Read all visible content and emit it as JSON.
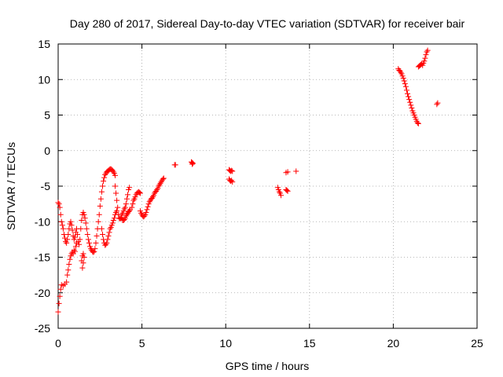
{
  "colors": {
    "series": "#ff0000",
    "grid": "#a0a0a0",
    "axis": "#000000"
  },
  "chart_data": {
    "type": "scatter",
    "title": "Day 280 of 2017, Sidereal Day-to-day VTEC variation (SDTVAR) for receiver bair",
    "xlabel": "GPS time / hours",
    "ylabel": "SDTVAR / TECUs",
    "xlim": [
      0,
      25
    ],
    "ylim": [
      -25,
      15
    ],
    "xticks": [
      0,
      5,
      10,
      15,
      20,
      25
    ],
    "yticks": [
      -25,
      -20,
      -15,
      -10,
      -5,
      0,
      5,
      10,
      15
    ],
    "xtick_labels": [
      "0",
      "5",
      "10",
      "15",
      "20",
      "25"
    ],
    "ytick_labels": [
      "-25",
      "-20",
      "-15",
      "-10",
      "-5",
      "0",
      "5",
      "10",
      "15"
    ],
    "grid": true,
    "marker": "+",
    "series": [
      {
        "name": "SDTVAR",
        "points": [
          [
            0.0,
            -7.3
          ],
          [
            0.05,
            -7.5
          ],
          [
            0.1,
            -8.0
          ],
          [
            0.15,
            -9.0
          ],
          [
            0.2,
            -10.0
          ],
          [
            0.25,
            -10.5
          ],
          [
            0.3,
            -11.0
          ],
          [
            0.35,
            -11.8
          ],
          [
            0.4,
            -12.3
          ],
          [
            0.45,
            -12.8
          ],
          [
            0.0,
            -22.7
          ],
          [
            0.05,
            -21.5
          ],
          [
            0.1,
            -20.5
          ],
          [
            0.15,
            -19.5
          ],
          [
            0.2,
            -18.9
          ],
          [
            0.3,
            -19.0
          ],
          [
            0.4,
            -18.8
          ],
          [
            0.5,
            -18.5
          ],
          [
            0.55,
            -17.5
          ],
          [
            0.6,
            -16.8
          ],
          [
            0.65,
            -16.0
          ],
          [
            0.7,
            -15.3
          ],
          [
            0.75,
            -14.8
          ],
          [
            0.8,
            -14.5
          ],
          [
            0.85,
            -14.3
          ],
          [
            0.9,
            -14.5
          ],
          [
            0.95,
            -14.0
          ],
          [
            1.0,
            -14.2
          ],
          [
            1.05,
            -13.5
          ],
          [
            1.1,
            -13.0
          ],
          [
            0.5,
            -13.0
          ],
          [
            0.55,
            -12.5
          ],
          [
            0.6,
            -11.8
          ],
          [
            0.65,
            -11.0
          ],
          [
            0.7,
            -10.3
          ],
          [
            0.75,
            -10.0
          ],
          [
            0.8,
            -10.5
          ],
          [
            0.85,
            -11.2
          ],
          [
            0.9,
            -12.0
          ],
          [
            0.95,
            -12.5
          ],
          [
            1.0,
            -12.2
          ],
          [
            1.05,
            -11.5
          ],
          [
            1.1,
            -11.0
          ],
          [
            1.15,
            -11.8
          ],
          [
            1.2,
            -12.8
          ],
          [
            1.25,
            -13.2
          ],
          [
            1.3,
            -12.5
          ],
          [
            1.35,
            -11.0
          ],
          [
            1.4,
            -9.8
          ],
          [
            1.45,
            -9.0
          ],
          [
            1.5,
            -8.7
          ],
          [
            1.55,
            -9.0
          ],
          [
            1.6,
            -9.5
          ],
          [
            1.65,
            -10.2
          ],
          [
            1.7,
            -11.0
          ],
          [
            1.75,
            -11.8
          ],
          [
            1.8,
            -12.5
          ],
          [
            1.85,
            -13.0
          ],
          [
            1.9,
            -13.5
          ],
          [
            1.95,
            -13.8
          ],
          [
            2.0,
            -14.0
          ],
          [
            2.05,
            -14.2
          ],
          [
            2.1,
            -14.3
          ],
          [
            2.15,
            -14.2
          ],
          [
            2.2,
            -13.8
          ],
          [
            2.25,
            -13.0
          ],
          [
            2.3,
            -12.0
          ],
          [
            2.35,
            -11.0
          ],
          [
            2.4,
            -10.0
          ],
          [
            2.45,
            -9.0
          ],
          [
            2.5,
            -7.8
          ],
          [
            2.55,
            -6.8
          ],
          [
            2.6,
            -5.8
          ],
          [
            2.65,
            -5.0
          ],
          [
            2.7,
            -4.3
          ],
          [
            2.75,
            -3.8
          ],
          [
            2.8,
            -3.4
          ],
          [
            2.85,
            -3.2
          ],
          [
            2.9,
            -3.0
          ],
          [
            2.95,
            -2.9
          ],
          [
            3.0,
            -2.8
          ],
          [
            3.05,
            -2.7
          ],
          [
            3.1,
            -2.6
          ],
          [
            3.15,
            -2.6
          ],
          [
            3.2,
            -2.7
          ],
          [
            3.25,
            -2.8
          ],
          [
            3.3,
            -3.0
          ],
          [
            3.35,
            -3.2
          ],
          [
            3.4,
            -3.5
          ],
          [
            1.4,
            -15.5
          ],
          [
            1.45,
            -16.5
          ],
          [
            1.5,
            -15.8
          ],
          [
            1.55,
            -15.0
          ],
          [
            1.45,
            -14.8
          ],
          [
            1.5,
            -14.5
          ],
          [
            2.6,
            -11.0
          ],
          [
            2.65,
            -11.8
          ],
          [
            2.7,
            -12.5
          ],
          [
            2.75,
            -13.0
          ],
          [
            2.8,
            -13.3
          ],
          [
            2.85,
            -13.2
          ],
          [
            2.9,
            -13.0
          ],
          [
            2.95,
            -12.5
          ],
          [
            3.0,
            -12.0
          ],
          [
            3.05,
            -11.5
          ],
          [
            3.1,
            -11.0
          ],
          [
            3.15,
            -10.8
          ],
          [
            3.2,
            -10.5
          ],
          [
            3.25,
            -10.2
          ],
          [
            3.3,
            -9.8
          ],
          [
            3.35,
            -9.5
          ],
          [
            3.4,
            -9.0
          ],
          [
            3.45,
            -8.7
          ],
          [
            3.5,
            -8.5
          ],
          [
            3.4,
            -5.0
          ],
          [
            3.45,
            -6.0
          ],
          [
            3.5,
            -7.0
          ],
          [
            3.55,
            -8.0
          ],
          [
            3.6,
            -9.0
          ],
          [
            3.65,
            -9.5
          ],
          [
            3.7,
            -9.6
          ],
          [
            3.75,
            -9.4
          ],
          [
            3.8,
            -9.0
          ],
          [
            3.85,
            -8.8
          ],
          [
            3.9,
            -8.5
          ],
          [
            3.95,
            -8.2
          ],
          [
            4.0,
            -8.0
          ],
          [
            4.05,
            -7.5
          ],
          [
            4.1,
            -6.8
          ],
          [
            4.15,
            -6.2
          ],
          [
            4.2,
            -5.5
          ],
          [
            4.25,
            -5.2
          ],
          [
            3.8,
            -9.5
          ],
          [
            3.85,
            -9.8
          ],
          [
            3.9,
            -9.8
          ],
          [
            3.95,
            -9.7
          ],
          [
            4.0,
            -9.5
          ],
          [
            4.05,
            -9.2
          ],
          [
            4.1,
            -9.0
          ],
          [
            4.15,
            -8.8
          ],
          [
            4.2,
            -8.6
          ],
          [
            4.25,
            -8.5
          ],
          [
            4.3,
            -8.3
          ],
          [
            4.4,
            -8.0
          ],
          [
            4.45,
            -7.5
          ],
          [
            4.5,
            -7.0
          ],
          [
            4.55,
            -6.8
          ],
          [
            4.6,
            -6.5
          ],
          [
            4.65,
            -6.2
          ],
          [
            4.7,
            -6.0
          ],
          [
            4.75,
            -5.9
          ],
          [
            4.8,
            -5.8
          ],
          [
            4.85,
            -5.9
          ],
          [
            4.9,
            -6.0
          ],
          [
            4.9,
            -8.5
          ],
          [
            4.95,
            -8.8
          ],
          [
            5.0,
            -9.0
          ],
          [
            5.05,
            -9.2
          ],
          [
            5.1,
            -9.3
          ],
          [
            5.15,
            -9.2
          ],
          [
            5.2,
            -9.0
          ],
          [
            5.25,
            -8.7
          ],
          [
            5.3,
            -8.3
          ],
          [
            5.35,
            -7.9
          ],
          [
            5.4,
            -7.5
          ],
          [
            5.45,
            -7.2
          ],
          [
            5.5,
            -7.0
          ],
          [
            5.55,
            -6.8
          ],
          [
            5.6,
            -6.7
          ],
          [
            5.65,
            -6.5
          ],
          [
            5.7,
            -6.3
          ],
          [
            5.75,
            -6.0
          ],
          [
            5.8,
            -5.8
          ],
          [
            5.85,
            -5.7
          ],
          [
            5.9,
            -5.5
          ],
          [
            5.95,
            -5.3
          ],
          [
            6.0,
            -5.0
          ],
          [
            6.05,
            -4.8
          ],
          [
            6.1,
            -4.6
          ],
          [
            6.15,
            -4.4
          ],
          [
            6.2,
            -4.2
          ],
          [
            6.25,
            -4.0
          ],
          [
            6.3,
            -3.9
          ],
          [
            6.95,
            -2.0
          ],
          [
            7.0,
            -2.0
          ],
          [
            7.95,
            -1.6
          ],
          [
            8.0,
            -1.7
          ],
          [
            8.05,
            -1.8
          ],
          [
            8.0,
            -1.9
          ],
          [
            10.2,
            -2.7
          ],
          [
            10.25,
            -2.8
          ],
          [
            10.3,
            -2.9
          ],
          [
            10.35,
            -2.8
          ],
          [
            10.4,
            -2.9
          ],
          [
            10.2,
            -4.0
          ],
          [
            10.25,
            -4.2
          ],
          [
            10.3,
            -4.3
          ],
          [
            10.35,
            -4.2
          ],
          [
            10.4,
            -4.4
          ],
          [
            13.1,
            -5.2
          ],
          [
            13.15,
            -5.5
          ],
          [
            13.2,
            -5.8
          ],
          [
            13.25,
            -6.0
          ],
          [
            13.3,
            -6.3
          ],
          [
            13.6,
            -5.5
          ],
          [
            13.65,
            -5.6
          ],
          [
            13.7,
            -5.7
          ],
          [
            13.6,
            -3.1
          ],
          [
            13.7,
            -3.0
          ],
          [
            14.2,
            -2.9
          ],
          [
            20.3,
            11.5
          ],
          [
            20.35,
            11.3
          ],
          [
            20.4,
            11.2
          ],
          [
            20.45,
            11.0
          ],
          [
            20.5,
            10.8
          ],
          [
            20.55,
            10.5
          ],
          [
            20.6,
            10.2
          ],
          [
            20.65,
            9.8
          ],
          [
            20.7,
            9.4
          ],
          [
            20.75,
            9.0
          ],
          [
            20.8,
            8.5
          ],
          [
            20.85,
            8.0
          ],
          [
            20.9,
            7.6
          ],
          [
            20.95,
            7.2
          ],
          [
            21.0,
            6.8
          ],
          [
            21.05,
            6.4
          ],
          [
            21.1,
            6.0
          ],
          [
            21.15,
            5.6
          ],
          [
            21.2,
            5.3
          ],
          [
            21.25,
            5.0
          ],
          [
            21.3,
            4.7
          ],
          [
            21.35,
            4.4
          ],
          [
            21.4,
            4.1
          ],
          [
            21.45,
            3.9
          ],
          [
            21.5,
            3.8
          ],
          [
            21.5,
            11.8
          ],
          [
            21.55,
            11.9
          ],
          [
            21.6,
            12.0
          ],
          [
            21.65,
            12.1
          ],
          [
            21.7,
            12.2
          ],
          [
            21.75,
            12.0
          ],
          [
            21.8,
            12.3
          ],
          [
            21.85,
            12.6
          ],
          [
            21.9,
            13.0
          ],
          [
            21.95,
            13.5
          ],
          [
            22.0,
            13.9
          ],
          [
            22.05,
            14.1
          ],
          [
            22.6,
            6.5
          ],
          [
            22.65,
            6.7
          ]
        ]
      }
    ]
  }
}
